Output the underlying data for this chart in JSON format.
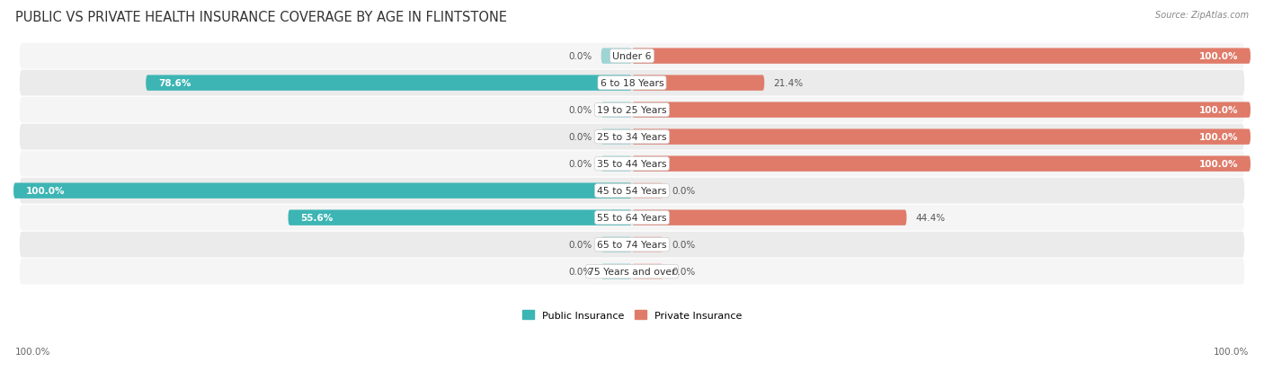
{
  "title": "PUBLIC VS PRIVATE HEALTH INSURANCE COVERAGE BY AGE IN FLINTSTONE",
  "source": "Source: ZipAtlas.com",
  "categories": [
    "Under 6",
    "6 to 18 Years",
    "19 to 25 Years",
    "25 to 34 Years",
    "35 to 44 Years",
    "45 to 54 Years",
    "55 to 64 Years",
    "65 to 74 Years",
    "75 Years and over"
  ],
  "public_values": [
    0.0,
    78.6,
    0.0,
    0.0,
    0.0,
    100.0,
    55.6,
    0.0,
    0.0
  ],
  "private_values": [
    100.0,
    21.4,
    100.0,
    100.0,
    100.0,
    0.0,
    44.4,
    0.0,
    0.0
  ],
  "public_color": "#3db5b5",
  "private_color": "#e07b6a",
  "public_color_light": "#9fd4d4",
  "private_color_light": "#f0b8b0",
  "row_bg_color_odd": "#f5f5f5",
  "row_bg_color_even": "#ebebeb",
  "title_fontsize": 10.5,
  "label_fontsize": 7.8,
  "value_fontsize": 7.5,
  "legend_fontsize": 8,
  "footer_fontsize": 7.5,
  "max_value": 100.0,
  "bar_height": 0.58,
  "stub_size": 5.0,
  "background_color": "#ffffff"
}
